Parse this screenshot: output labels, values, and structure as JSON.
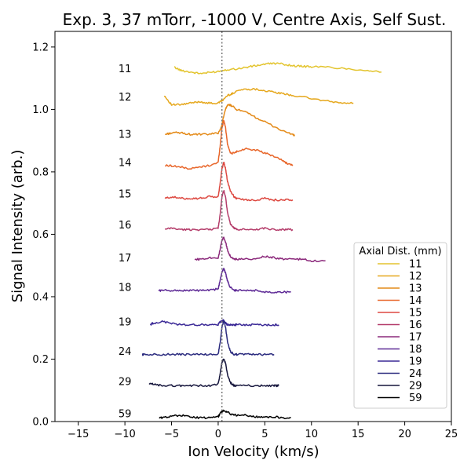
{
  "chart_data": {
    "type": "line",
    "title": "Exp. 3, 37 mTorr, -1000 V, Centre Axis, Self Sust.",
    "xlabel": "Ion Velocity (km/s)",
    "ylabel": "Signal Intensity (arb.)",
    "xlim": [
      -17.5,
      25
    ],
    "ylim": [
      0,
      1.25
    ],
    "xticks": [
      -15,
      -10,
      -5,
      0,
      5,
      10,
      15,
      20,
      25
    ],
    "yticks": [
      0.0,
      0.2,
      0.4,
      0.6,
      0.8,
      1.0,
      1.2
    ],
    "xtick_labels": [
      "−15",
      "−10",
      "−5",
      "0",
      "5",
      "10",
      "15",
      "20",
      "25"
    ],
    "ytick_labels": [
      "0.0",
      "0.2",
      "0.4",
      "0.6",
      "0.8",
      "1.0",
      "1.2"
    ],
    "grid": false,
    "reference_line": {
      "x": 0.4,
      "style": "dotted",
      "color": "#777777"
    },
    "legend": {
      "title": "Axial Dist. (mm)",
      "placement": "lower-right"
    },
    "series": [
      {
        "name": "11",
        "label_x": -10,
        "label_y": 1.13,
        "color": "#e3c42e",
        "x": [
          -4.7,
          -4.0,
          -3.0,
          -2.0,
          -1.0,
          0.0,
          1.0,
          2.0,
          3.0,
          4.0,
          5.0,
          6.0,
          7.0,
          8.0,
          9.0,
          10.0,
          12.0,
          14.0,
          16.0,
          17.5
        ],
        "y": [
          1.135,
          1.125,
          1.12,
          1.115,
          1.118,
          1.122,
          1.128,
          1.13,
          1.135,
          1.14,
          1.145,
          1.148,
          1.145,
          1.14,
          1.138,
          1.137,
          1.135,
          1.13,
          1.125,
          1.12
        ]
      },
      {
        "name": "12",
        "label_x": -10,
        "label_y": 1.04,
        "color": "#e6a81e",
        "x": [
          -5.8,
          -5.0,
          -4.0,
          -3.0,
          -2.0,
          -1.0,
          0.0,
          0.5,
          1.0,
          1.5,
          2.0,
          3.0,
          4.0,
          5.0,
          6.0,
          7.0,
          8.0,
          10.0,
          12.0,
          13.5,
          14.5
        ],
        "y": [
          1.045,
          1.015,
          1.015,
          1.02,
          1.025,
          1.02,
          1.02,
          1.03,
          1.045,
          1.05,
          1.06,
          1.065,
          1.065,
          1.06,
          1.055,
          1.05,
          1.045,
          1.035,
          1.025,
          1.02,
          1.02
        ]
      },
      {
        "name": "13",
        "label_x": -10,
        "label_y": 0.92,
        "color": "#e48a18",
        "x": [
          -5.7,
          -5.0,
          -4.0,
          -3.0,
          -2.0,
          -1.0,
          0.0,
          0.3,
          0.6,
          0.9,
          1.2,
          1.5,
          2.0,
          3.0,
          4.0,
          5.0,
          6.0,
          7.0,
          8.0,
          8.2
        ],
        "y": [
          0.92,
          0.925,
          0.925,
          0.92,
          0.92,
          0.92,
          0.925,
          0.94,
          0.98,
          1.01,
          1.015,
          1.01,
          1.0,
          0.99,
          0.975,
          0.96,
          0.945,
          0.93,
          0.92,
          0.915
        ]
      },
      {
        "name": "14",
        "label_x": -10,
        "label_y": 0.83,
        "color": "#e8662a",
        "x": [
          -5.7,
          -5.0,
          -4.0,
          -3.0,
          -2.0,
          -1.0,
          0.0,
          0.2,
          0.4,
          0.6,
          0.8,
          1.0,
          1.3,
          1.7,
          2.0,
          3.0,
          4.0,
          5.0,
          6.0,
          7.0,
          7.5,
          8.0
        ],
        "y": [
          0.82,
          0.82,
          0.815,
          0.81,
          0.815,
          0.82,
          0.83,
          0.88,
          0.94,
          0.965,
          0.94,
          0.89,
          0.86,
          0.86,
          0.865,
          0.875,
          0.87,
          0.86,
          0.85,
          0.835,
          0.825,
          0.82
        ]
      },
      {
        "name": "15",
        "label_x": -10,
        "label_y": 0.73,
        "color": "#dd4840",
        "x": [
          -5.7,
          -5.0,
          -4.0,
          -3.0,
          -2.0,
          -1.0,
          0.0,
          0.2,
          0.4,
          0.6,
          0.8,
          1.0,
          1.3,
          1.7,
          2.0,
          3.0,
          4.0,
          5.0,
          6.0,
          7.0,
          8.0
        ],
        "y": [
          0.715,
          0.72,
          0.715,
          0.715,
          0.715,
          0.72,
          0.72,
          0.76,
          0.81,
          0.83,
          0.81,
          0.77,
          0.74,
          0.72,
          0.715,
          0.71,
          0.71,
          0.715,
          0.71,
          0.71,
          0.71
        ]
      },
      {
        "name": "16",
        "label_x": -10,
        "label_y": 0.63,
        "color": "#b43c6a",
        "x": [
          -5.7,
          -5.0,
          -4.0,
          -3.0,
          -2.0,
          -1.0,
          0.0,
          0.2,
          0.4,
          0.6,
          0.8,
          1.0,
          1.3,
          1.7,
          2.0,
          3.0,
          4.0,
          5.0,
          6.0,
          7.0,
          8.0
        ],
        "y": [
          0.615,
          0.62,
          0.615,
          0.615,
          0.615,
          0.615,
          0.62,
          0.66,
          0.72,
          0.74,
          0.72,
          0.67,
          0.635,
          0.62,
          0.615,
          0.615,
          0.615,
          0.62,
          0.615,
          0.615,
          0.615
        ]
      },
      {
        "name": "17",
        "label_x": -10,
        "label_y": 0.525,
        "color": "#8c2a7c",
        "x": [
          -2.5,
          -2.0,
          -1.0,
          0.0,
          0.2,
          0.4,
          0.6,
          0.8,
          1.0,
          1.3,
          1.7,
          2.0,
          3.0,
          4.0,
          5.0,
          6.0,
          7.0,
          8.0,
          9.0,
          10.0,
          11.5
        ],
        "y": [
          0.52,
          0.52,
          0.525,
          0.525,
          0.55,
          0.58,
          0.59,
          0.575,
          0.55,
          0.53,
          0.52,
          0.52,
          0.52,
          0.52,
          0.53,
          0.525,
          0.52,
          0.52,
          0.52,
          0.515,
          0.515
        ]
      },
      {
        "name": "18",
        "label_x": -10,
        "label_y": 0.43,
        "color": "#5e2a96",
        "x": [
          -6.4,
          -6.0,
          -5.0,
          -4.0,
          -3.0,
          -2.0,
          -1.0,
          0.0,
          0.2,
          0.4,
          0.6,
          0.8,
          1.0,
          1.3,
          1.7,
          2.0,
          3.0,
          4.0,
          5.0,
          6.0,
          7.0,
          7.8
        ],
        "y": [
          0.42,
          0.42,
          0.42,
          0.42,
          0.42,
          0.42,
          0.42,
          0.425,
          0.45,
          0.48,
          0.49,
          0.475,
          0.45,
          0.43,
          0.42,
          0.42,
          0.42,
          0.42,
          0.415,
          0.415,
          0.415,
          0.415
        ]
      },
      {
        "name": "19",
        "label_x": -10,
        "label_y": 0.32,
        "color": "#3a2896",
        "x": [
          -7.3,
          -7.0,
          -6.0,
          -5.0,
          -4.0,
          -3.0,
          -2.0,
          -1.0,
          0.0,
          0.2,
          0.4,
          0.6,
          0.8,
          1.0,
          1.3,
          1.7,
          2.0,
          3.0,
          4.0,
          5.0,
          6.0,
          6.5
        ],
        "y": [
          0.31,
          0.315,
          0.32,
          0.315,
          0.31,
          0.31,
          0.31,
          0.31,
          0.31,
          0.32,
          0.32,
          0.325,
          0.315,
          0.31,
          0.31,
          0.31,
          0.31,
          0.31,
          0.31,
          0.31,
          0.31,
          0.31
        ]
      },
      {
        "name": "24",
        "label_x": -10,
        "label_y": 0.225,
        "color": "#2a2a7e",
        "x": [
          -8.1,
          -8.0,
          -7.0,
          -6.0,
          -5.0,
          -4.0,
          -3.0,
          -2.0,
          -1.0,
          0.0,
          0.2,
          0.4,
          0.6,
          0.8,
          1.0,
          1.3,
          1.7,
          2.0,
          3.0,
          4.0,
          5.0,
          6.0
        ],
        "y": [
          0.215,
          0.215,
          0.215,
          0.215,
          0.215,
          0.215,
          0.215,
          0.215,
          0.215,
          0.215,
          0.25,
          0.3,
          0.325,
          0.3,
          0.255,
          0.225,
          0.215,
          0.215,
          0.215,
          0.215,
          0.215,
          0.215
        ]
      },
      {
        "name": "29",
        "label_x": -10,
        "label_y": 0.128,
        "color": "#15153c",
        "x": [
          -7.4,
          -7.0,
          -6.0,
          -5.0,
          -4.0,
          -3.0,
          -2.0,
          -1.0,
          0.0,
          0.2,
          0.4,
          0.6,
          0.8,
          1.0,
          1.3,
          1.7,
          2.0,
          3.0,
          4.0,
          5.0,
          6.0,
          6.5
        ],
        "y": [
          0.12,
          0.12,
          0.115,
          0.115,
          0.115,
          0.115,
          0.115,
          0.115,
          0.12,
          0.15,
          0.19,
          0.2,
          0.185,
          0.15,
          0.125,
          0.115,
          0.115,
          0.115,
          0.115,
          0.115,
          0.115,
          0.115
        ]
      },
      {
        "name": "59",
        "label_x": -10,
        "label_y": 0.025,
        "color": "#000000",
        "x": [
          -6.3,
          -6.0,
          -5.0,
          -4.0,
          -3.0,
          -2.0,
          -1.0,
          0.0,
          0.3,
          0.6,
          1.0,
          1.5,
          2.0,
          3.0,
          4.0,
          5.0,
          6.0,
          7.0,
          7.8
        ],
        "y": [
          0.012,
          0.012,
          0.018,
          0.02,
          0.015,
          0.012,
          0.012,
          0.015,
          0.03,
          0.035,
          0.03,
          0.022,
          0.02,
          0.02,
          0.015,
          0.015,
          0.015,
          0.012,
          0.012
        ]
      }
    ]
  }
}
